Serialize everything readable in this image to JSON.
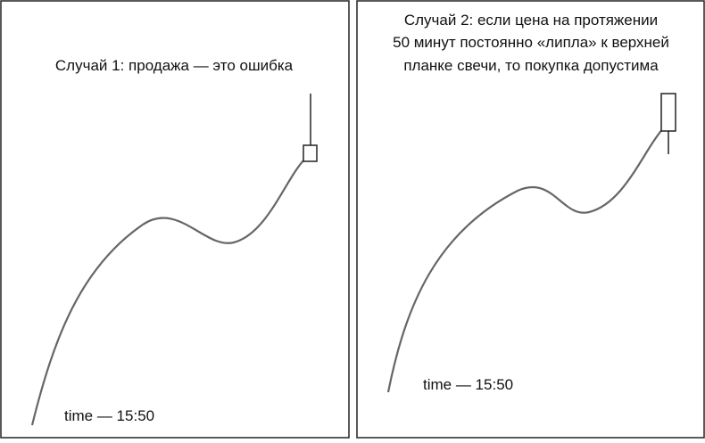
{
  "panels": [
    {
      "title_lines": [
        "Случай 1: продажа — это ошибка"
      ],
      "time_label": "time — 15:50"
    },
    {
      "title_lines": [
        "Случай 2: если цена на протяжении",
        "50 минут постоянно «липла» к верхней",
        "планке свечи, то покупка допустима"
      ],
      "time_label": "time — 15:50"
    }
  ]
}
